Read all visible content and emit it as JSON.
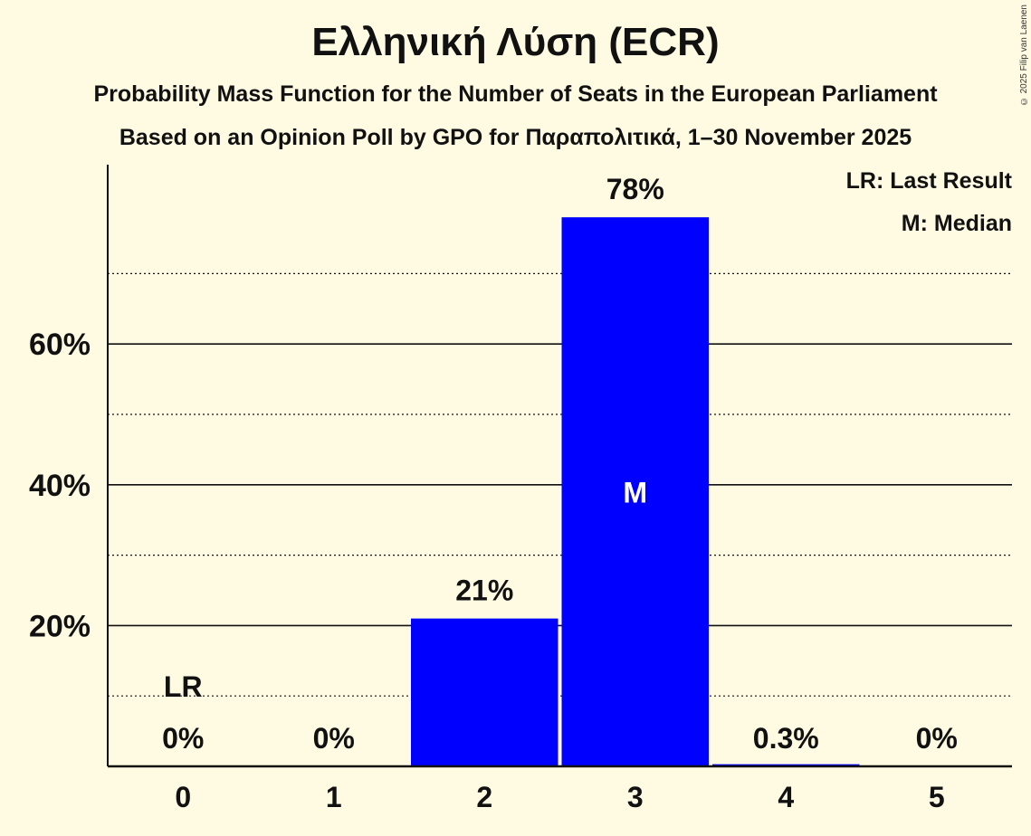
{
  "title": "Ελληνική Λύση (ECR)",
  "subtitle1": "Probability Mass Function for the Number of Seats in the European Parliament",
  "subtitle2": "Based on an Opinion Poll by GPO for Παραπολιτικά, 1–30 November 2025",
  "copyright": "© 2025 Filip van Laenen",
  "legend": {
    "lr": "LR: Last Result",
    "m": "M: Median"
  },
  "colors": {
    "bar": "#0000ff",
    "background": "#fffbe2",
    "text": "#111111"
  },
  "chart_data": {
    "type": "bar",
    "title": "Ελληνική Λύση (ECR)",
    "subtitle": "Probability Mass Function for the Number of Seats in the European Parliament",
    "categories": [
      "0",
      "1",
      "2",
      "3",
      "4",
      "5"
    ],
    "values": [
      0,
      0,
      21,
      78,
      0.3,
      0
    ],
    "value_labels": [
      "0%",
      "0%",
      "21%",
      "78%",
      "0.3%",
      "0%"
    ],
    "xlabel": "",
    "ylabel": "",
    "yticks": [
      "20%",
      "40%",
      "60%"
    ],
    "ylim": [
      0,
      85
    ],
    "grid": true,
    "annotations": [
      {
        "category": "0",
        "text": "LR",
        "meaning": "Last Result"
      },
      {
        "category": "3",
        "text": "M",
        "meaning": "Median"
      }
    ],
    "legend": [
      "LR: Last Result",
      "M: Median"
    ],
    "legend_position": "top-right"
  }
}
